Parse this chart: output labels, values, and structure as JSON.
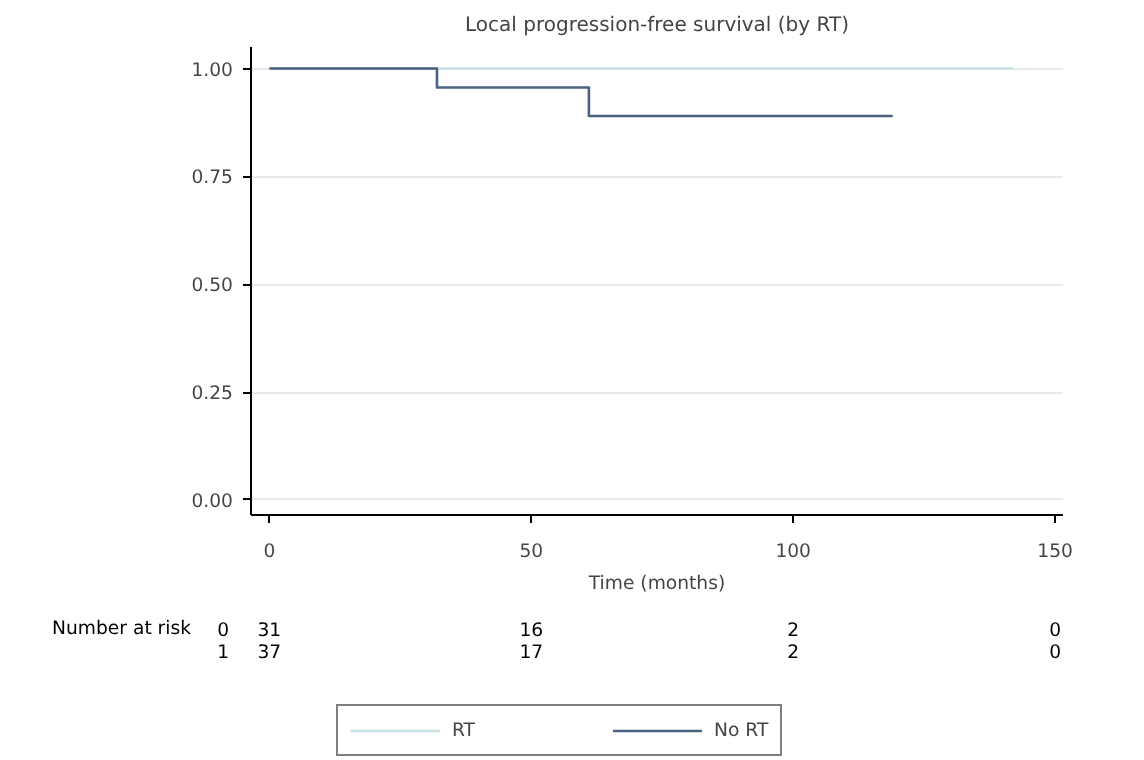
{
  "chart_data": {
    "type": "step",
    "title": "Local progression-free survival (by RT)",
    "xlabel": "Time (months)",
    "series": [
      {
        "name": "RT",
        "color": "#c8e0e4",
        "x": [
          0,
          142
        ],
        "values": [
          1.0,
          1.0
        ]
      },
      {
        "name": "No RT",
        "color": "#4a6383",
        "x": [
          0,
          32,
          61,
          119
        ],
        "values": [
          1.0,
          0.956,
          0.89,
          0.89
        ]
      }
    ],
    "xlim": [
      -3.5,
      151.5
    ],
    "xticks": [
      0,
      50,
      100,
      150
    ],
    "ylim": [
      -0.035,
      1.05
    ],
    "yticks": [
      {
        "value": 0,
        "label": "0.00"
      },
      {
        "value": 0.25,
        "label": "0.25"
      },
      {
        "value": 0.5,
        "label": "0.50"
      },
      {
        "value": 0.75,
        "label": "0.75"
      },
      {
        "value": 1,
        "label": "1.00"
      }
    ],
    "grid": "y",
    "legend": "bottom",
    "annotations": [
      "Number at risk",
      "0",
      "31",
      "16",
      "2",
      "0",
      "1",
      "37",
      "17",
      "2",
      "0"
    ]
  }
}
